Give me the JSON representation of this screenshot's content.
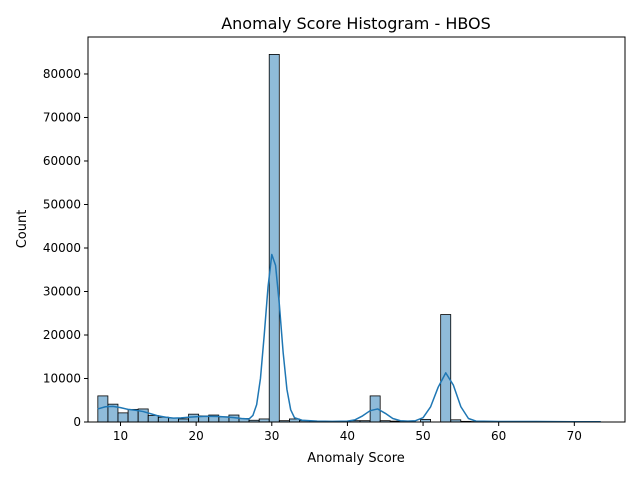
{
  "chart_data": {
    "type": "bar",
    "title": "Anomaly Score Histogram - HBOS",
    "xlabel": "Anomaly Score",
    "ylabel": "Count",
    "xlim": [
      5.7,
      76.7
    ],
    "ylim": [
      0,
      88500
    ],
    "bin_width": 1.33,
    "xticks": [
      10,
      20,
      30,
      40,
      50,
      60,
      70
    ],
    "yticks": [
      0,
      10000,
      20000,
      30000,
      40000,
      50000,
      60000,
      70000,
      80000
    ],
    "bar_color": "#1f77b4",
    "grid": false,
    "series": [
      {
        "kind": "histogram",
        "bins": [
          {
            "x": 7.0,
            "count": 6000
          },
          {
            "x": 8.33,
            "count": 4100
          },
          {
            "x": 9.66,
            "count": 2100
          },
          {
            "x": 11.0,
            "count": 2900
          },
          {
            "x": 12.33,
            "count": 3000
          },
          {
            "x": 13.66,
            "count": 1500
          },
          {
            "x": 15.0,
            "count": 1100
          },
          {
            "x": 16.33,
            "count": 900
          },
          {
            "x": 17.66,
            "count": 700
          },
          {
            "x": 19.0,
            "count": 1800
          },
          {
            "x": 20.33,
            "count": 1400
          },
          {
            "x": 21.66,
            "count": 1600
          },
          {
            "x": 23.0,
            "count": 1200
          },
          {
            "x": 24.33,
            "count": 1600
          },
          {
            "x": 25.66,
            "count": 800
          },
          {
            "x": 27.0,
            "count": 400
          },
          {
            "x": 28.33,
            "count": 700
          },
          {
            "x": 29.66,
            "count": 84500
          },
          {
            "x": 31.0,
            "count": 300
          },
          {
            "x": 32.33,
            "count": 700
          },
          {
            "x": 33.66,
            "count": 300
          },
          {
            "x": 35.0,
            "count": 200
          },
          {
            "x": 36.33,
            "count": 100
          },
          {
            "x": 40.33,
            "count": 300
          },
          {
            "x": 41.66,
            "count": 300
          },
          {
            "x": 43.0,
            "count": 6000
          },
          {
            "x": 44.33,
            "count": 300
          },
          {
            "x": 45.66,
            "count": 200
          },
          {
            "x": 47.0,
            "count": 100
          },
          {
            "x": 49.66,
            "count": 600
          },
          {
            "x": 52.33,
            "count": 24700
          },
          {
            "x": 53.66,
            "count": 500
          },
          {
            "x": 55.0,
            "count": 150
          },
          {
            "x": 56.33,
            "count": 100
          },
          {
            "x": 72.0,
            "count": 50
          }
        ]
      },
      {
        "kind": "kde",
        "color": "#1f77b4",
        "points": [
          [
            7.0,
            3000
          ],
          [
            8.0,
            3500
          ],
          [
            9.0,
            3600
          ],
          [
            10.0,
            3300
          ],
          [
            11.0,
            2900
          ],
          [
            12.0,
            2700
          ],
          [
            13.0,
            2400
          ],
          [
            14.0,
            1900
          ],
          [
            15.0,
            1400
          ],
          [
            16.0,
            1100
          ],
          [
            17.0,
            900
          ],
          [
            18.0,
            950
          ],
          [
            19.0,
            1100
          ],
          [
            20.0,
            1200
          ],
          [
            21.0,
            1300
          ],
          [
            22.0,
            1300
          ],
          [
            23.0,
            1250
          ],
          [
            24.0,
            1150
          ],
          [
            25.0,
            1000
          ],
          [
            26.0,
            800
          ],
          [
            27.0,
            700
          ],
          [
            27.5,
            1500
          ],
          [
            28.0,
            4000
          ],
          [
            28.5,
            10000
          ],
          [
            29.0,
            20000
          ],
          [
            29.5,
            31000
          ],
          [
            30.0,
            38500
          ],
          [
            30.5,
            36000
          ],
          [
            31.0,
            27000
          ],
          [
            31.5,
            16000
          ],
          [
            32.0,
            7500
          ],
          [
            32.5,
            2800
          ],
          [
            33.0,
            1000
          ],
          [
            34.0,
            400
          ],
          [
            36.0,
            200
          ],
          [
            38.0,
            150
          ],
          [
            40.0,
            200
          ],
          [
            41.0,
            500
          ],
          [
            42.0,
            1400
          ],
          [
            43.0,
            2600
          ],
          [
            44.0,
            3000
          ],
          [
            45.0,
            2000
          ],
          [
            46.0,
            800
          ],
          [
            47.0,
            300
          ],
          [
            48.0,
            200
          ],
          [
            49.0,
            300
          ],
          [
            50.0,
            1000
          ],
          [
            51.0,
            3500
          ],
          [
            52.0,
            8000
          ],
          [
            53.0,
            11300
          ],
          [
            54.0,
            8500
          ],
          [
            55.0,
            3500
          ],
          [
            56.0,
            800
          ],
          [
            57.0,
            200
          ],
          [
            60.0,
            100
          ],
          [
            65.0,
            100
          ],
          [
            70.0,
            60
          ],
          [
            73.5,
            50
          ]
        ]
      }
    ]
  }
}
